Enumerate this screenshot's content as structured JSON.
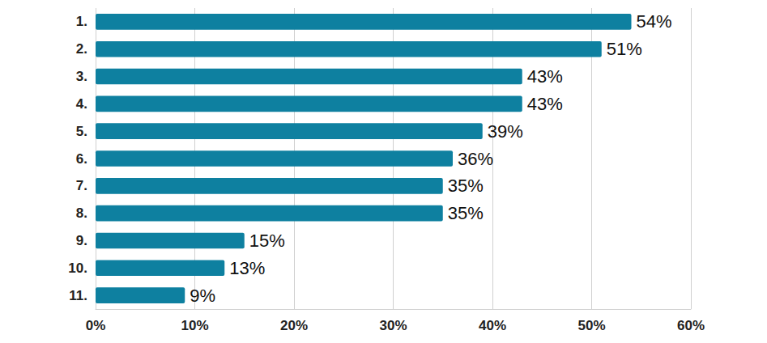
{
  "chart_data": {
    "type": "bar",
    "orientation": "horizontal",
    "categories": [
      "1.",
      "2.",
      "3.",
      "4.",
      "5.",
      "6.",
      "7.",
      "8.",
      "9.",
      "10.",
      "11."
    ],
    "values": [
      54,
      51,
      43,
      43,
      39,
      36,
      35,
      35,
      15,
      13,
      9
    ],
    "value_labels": [
      "54%",
      "51%",
      "43%",
      "43%",
      "39%",
      "36%",
      "35%",
      "35%",
      "15%",
      "13%",
      "9%"
    ],
    "color": "#0e80a0",
    "xlim": [
      0,
      60
    ],
    "xticks": [
      {
        "value": 0,
        "label": "0%"
      },
      {
        "value": 10,
        "label": "10%"
      },
      {
        "value": 20,
        "label": "20%"
      },
      {
        "value": 30,
        "label": "30%"
      },
      {
        "value": 40,
        "label": "40%"
      },
      {
        "value": 50,
        "label": "50%"
      },
      {
        "value": 60,
        "label": "60%"
      }
    ],
    "grid": true,
    "data_labels": true
  }
}
